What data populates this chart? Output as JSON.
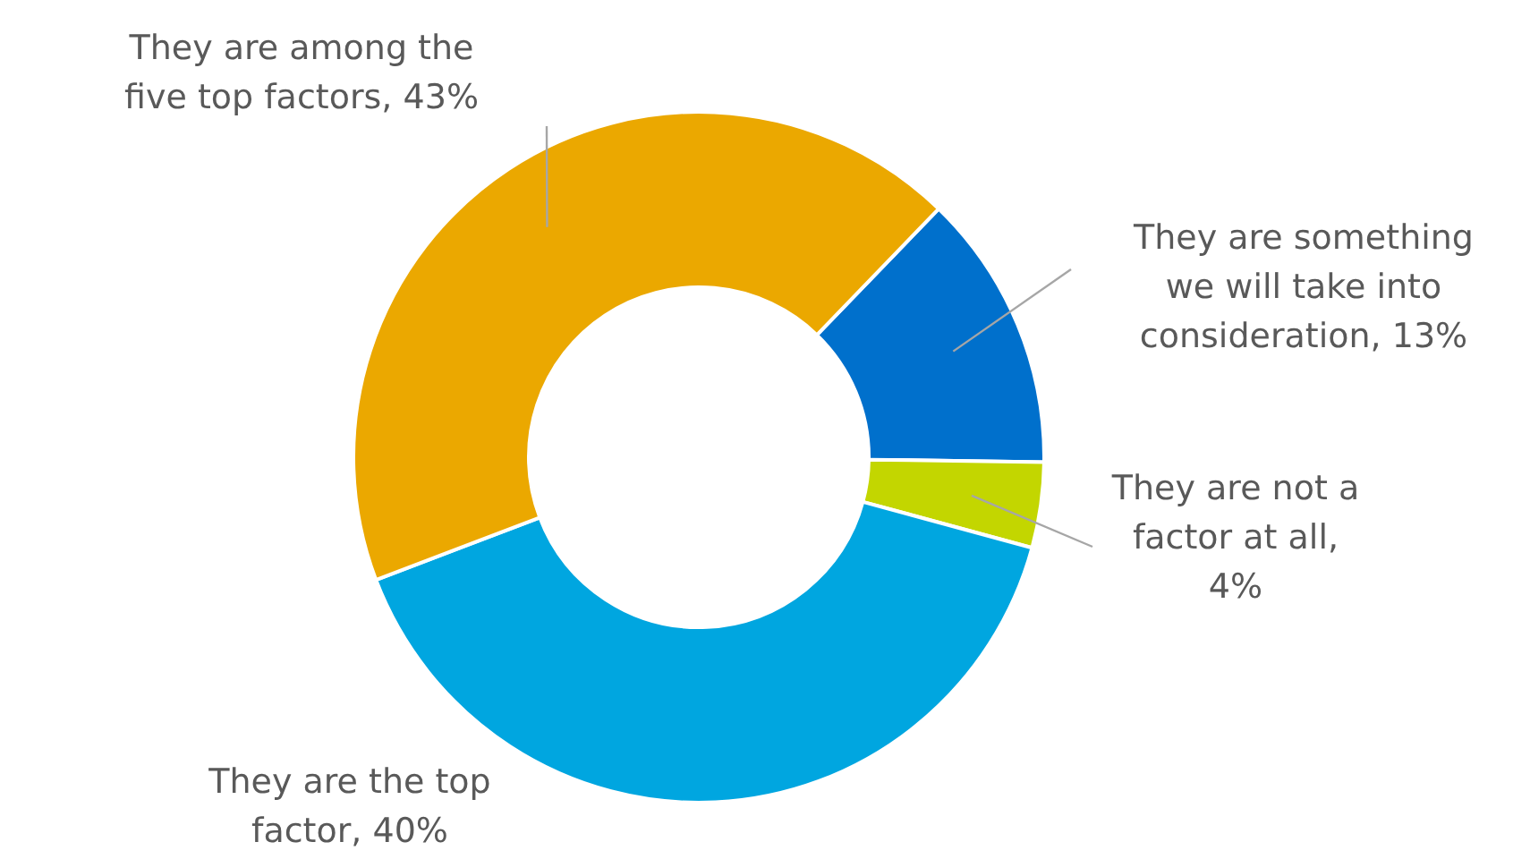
{
  "chart_data": {
    "type": "donut",
    "categories": [
      "They are something we will take into consideration, 13%",
      "They are not a factor at all, 4%",
      "They are the top factor, 40%",
      "They are among the five top factors, 43%"
    ],
    "values": [
      13,
      4,
      40,
      43
    ],
    "colors": [
      "#0070cc",
      "#c3d600",
      "#00a6e0",
      "#eba800"
    ]
  }
}
